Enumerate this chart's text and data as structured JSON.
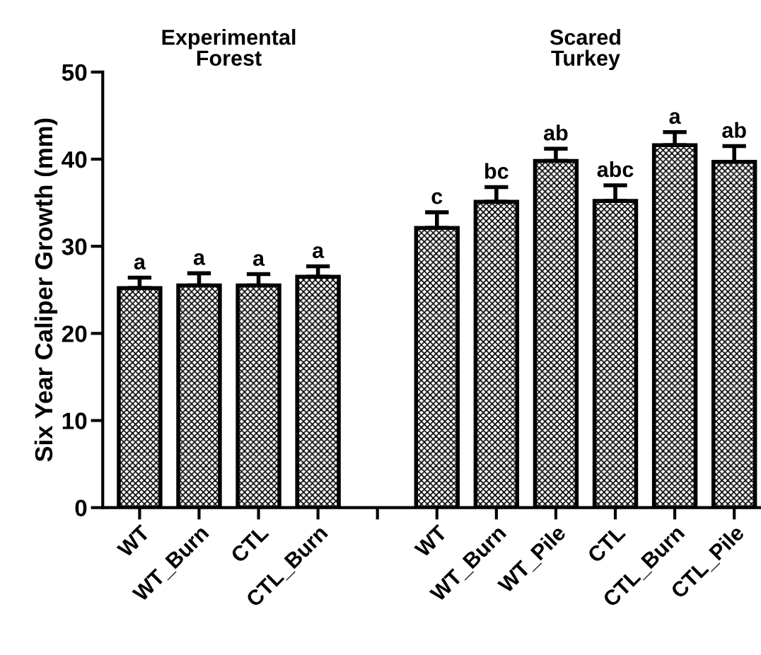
{
  "chart_data": {
    "type": "bar",
    "ylabel": "Six Year Caliper Growth (mm)",
    "categories": [
      "WT",
      "WT_Burn",
      "CTL",
      "CTL_Burn",
      null,
      "WT",
      "WT_Burn",
      "WT_Pile",
      "CTL",
      "CTL_Burn",
      "CTL_Pile"
    ],
    "values": [
      25.2,
      25.5,
      25.5,
      26.5,
      null,
      32.1,
      35.1,
      39.8,
      35.2,
      41.6,
      39.7
    ],
    "errors": [
      [
        25.2,
        26.4
      ],
      [
        25.5,
        26.9
      ],
      [
        25.5,
        26.8
      ],
      [
        26.5,
        27.7
      ],
      null,
      [
        32.1,
        33.9
      ],
      [
        35.1,
        36.8
      ],
      [
        39.8,
        41.2
      ],
      [
        35.2,
        37.0
      ],
      [
        41.6,
        43.1
      ],
      [
        39.7,
        41.5
      ]
    ],
    "value_labels": [
      "a",
      "a",
      "a",
      "a",
      null,
      "c",
      "bc",
      "ab",
      "abc",
      "a",
      "ab"
    ],
    "annotations": [
      "Experimental\nForest",
      "Scared\nTurkey"
    ],
    "color": "#000000",
    "ylim": [
      0,
      50
    ],
    "yticks": [
      0,
      10,
      20,
      30,
      40,
      50
    ],
    "grid": false,
    "legend": false
  }
}
